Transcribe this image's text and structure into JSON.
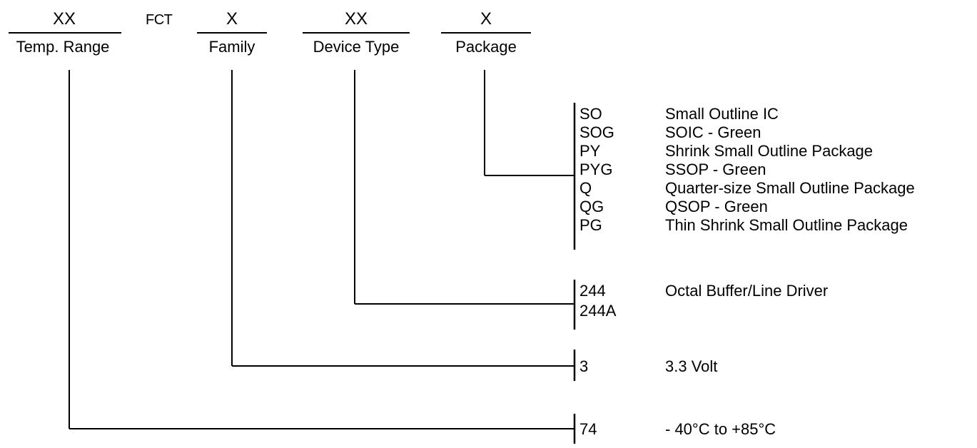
{
  "fields": [
    {
      "code": "XX",
      "label": "Temp. Range"
    },
    {
      "code": "X",
      "label": "Family"
    },
    {
      "code": "XX",
      "label": "Device Type"
    },
    {
      "code": "X",
      "label": "Package"
    }
  ],
  "fixed_text": "FCT",
  "groups": {
    "package": [
      {
        "code": "SO",
        "desc": "Small Outline IC"
      },
      {
        "code": "SOG",
        "desc": "SOIC - Green"
      },
      {
        "code": "PY",
        "desc": "Shrink Small Outline Package"
      },
      {
        "code": "PYG",
        "desc": "SSOP - Green"
      },
      {
        "code": "Q",
        "desc": "Quarter-size Small Outline Package"
      },
      {
        "code": "QG",
        "desc": "QSOP - Green"
      },
      {
        "code": "PG",
        "desc": "Thin Shrink Small Outline Package"
      }
    ],
    "device_type": {
      "codes": [
        "244",
        "244A"
      ],
      "desc": "Octal Buffer/Line Driver"
    },
    "family": {
      "code": "3",
      "desc": "3.3 Volt"
    },
    "temp_range": {
      "code": "74",
      "desc": "- 40°C to +85°C"
    }
  }
}
